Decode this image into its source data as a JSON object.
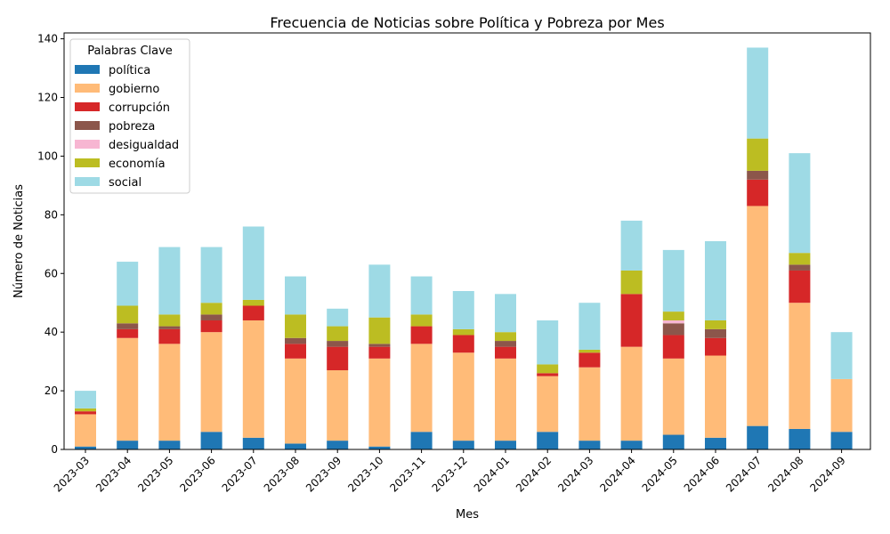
{
  "chart_data": {
    "type": "bar",
    "stacked": true,
    "title": "Frecuencia de Noticias sobre Política y Pobreza por Mes",
    "xlabel": "Mes",
    "ylabel": "Número de Noticias",
    "ylim": [
      0,
      142
    ],
    "yticks": [
      0,
      20,
      40,
      60,
      80,
      100,
      120,
      140
    ],
    "grid": false,
    "legend": {
      "title": "Palabras Clave",
      "placement": "top-left"
    },
    "categories": [
      "2023-03",
      "2023-04",
      "2023-05",
      "2023-06",
      "2023-07",
      "2023-08",
      "2023-09",
      "2023-10",
      "2023-11",
      "2023-12",
      "2024-01",
      "2024-02",
      "2024-03",
      "2024-04",
      "2024-05",
      "2024-06",
      "2024-07",
      "2024-08",
      "2024-09"
    ],
    "series": [
      {
        "name": "política",
        "color": "#1f77b4",
        "values": [
          1,
          3,
          3,
          6,
          4,
          2,
          3,
          1,
          6,
          3,
          3,
          6,
          3,
          3,
          5,
          4,
          8,
          7,
          6
        ]
      },
      {
        "name": "gobierno",
        "color": "#ffbb78",
        "values": [
          11,
          35,
          33,
          34,
          40,
          29,
          24,
          30,
          30,
          30,
          28,
          19,
          25,
          32,
          26,
          28,
          75,
          43,
          18
        ]
      },
      {
        "name": "corrupción",
        "color": "#d62728",
        "values": [
          1,
          3,
          5,
          4,
          5,
          5,
          8,
          4,
          6,
          6,
          4,
          1,
          5,
          18,
          8,
          6,
          9,
          11,
          0
        ]
      },
      {
        "name": "pobreza",
        "color": "#8c564b",
        "values": [
          0,
          2,
          1,
          2,
          0,
          2,
          2,
          1,
          0,
          0,
          2,
          0,
          0,
          0,
          4,
          3,
          3,
          2,
          0
        ]
      },
      {
        "name": "desigualdad",
        "color": "#f7b6d2",
        "values": [
          0,
          0,
          0,
          0,
          0,
          0,
          0,
          0,
          0,
          0,
          0,
          0,
          0,
          0,
          1,
          0,
          0,
          0,
          0
        ]
      },
      {
        "name": "economía",
        "color": "#bcbd22",
        "values": [
          1,
          6,
          4,
          4,
          2,
          8,
          5,
          9,
          4,
          2,
          3,
          3,
          1,
          8,
          3,
          3,
          11,
          4,
          0
        ]
      },
      {
        "name": "social",
        "color": "#9edae5",
        "values": [
          6,
          15,
          23,
          19,
          25,
          13,
          6,
          18,
          13,
          13,
          13,
          15,
          16,
          17,
          21,
          27,
          31,
          34,
          16
        ]
      }
    ]
  }
}
